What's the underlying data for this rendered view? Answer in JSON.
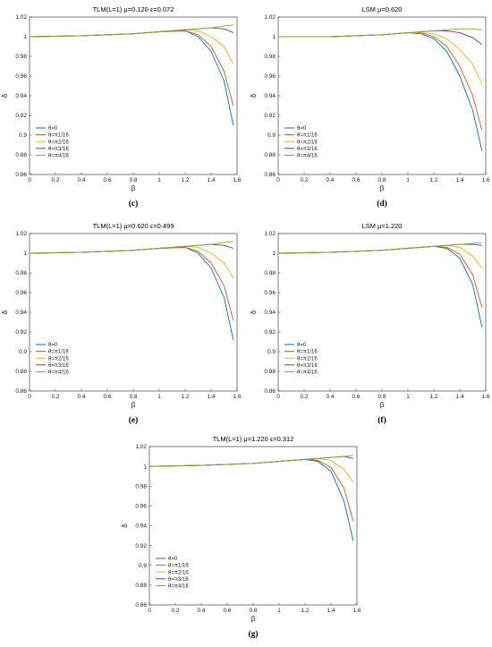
{
  "chart_data": [
    {
      "type": "line",
      "panel": "(c)",
      "title": "TLM(L=1)  μ=0.120 ϵ=0.072",
      "xlabel": "β",
      "ylabel": "δ",
      "xlim": [
        0,
        1.6
      ],
      "ylim": [
        0.86,
        1.02
      ],
      "xticks": [
        "0",
        "0.2",
        "0.4",
        "0.6",
        "0.8",
        "1",
        "1.2",
        "1.4",
        "1.6"
      ],
      "yticks": [
        "0.86",
        "0.88",
        "0.9",
        "0.92",
        "0.94",
        "0.96",
        "0.98",
        "1",
        "1.02"
      ],
      "legend_position": "lower-left",
      "series": [
        {
          "name": "θ=0",
          "color": "#0072BD",
          "x": [
            0,
            0.4,
            0.8,
            1.0,
            1.2,
            1.3,
            1.4,
            1.5,
            1.571
          ],
          "y": [
            1.0,
            1.001,
            1.003,
            1.005,
            1.006,
            1.0,
            0.985,
            0.955,
            0.91
          ]
        },
        {
          "name": "θ=π1/16",
          "color": "#D95319",
          "x": [
            0,
            0.4,
            0.8,
            1.0,
            1.2,
            1.3,
            1.4,
            1.5,
            1.571
          ],
          "y": [
            1.0,
            1.001,
            1.003,
            1.005,
            1.006,
            1.002,
            0.99,
            0.965,
            0.93
          ]
        },
        {
          "name": "θ=π2/16",
          "color": "#EDB120",
          "x": [
            0,
            0.4,
            0.8,
            1.0,
            1.2,
            1.3,
            1.4,
            1.5,
            1.571
          ],
          "y": [
            1.0,
            1.001,
            1.003,
            1.005,
            1.007,
            1.006,
            1.0,
            0.99,
            0.972
          ]
        },
        {
          "name": "θ=π3/16",
          "color": "#7E2F8E",
          "x": [
            0,
            0.4,
            0.8,
            1.0,
            1.2,
            1.3,
            1.4,
            1.5,
            1.571
          ],
          "y": [
            1.0,
            1.001,
            1.003,
            1.005,
            1.007,
            1.008,
            1.009,
            1.008,
            1.004
          ]
        },
        {
          "name": "θ=π4/16",
          "color": "#77AC30",
          "x": [
            0,
            0.4,
            0.8,
            1.0,
            1.2,
            1.3,
            1.4,
            1.5,
            1.571
          ],
          "y": [
            1.0,
            1.001,
            1.003,
            1.005,
            1.007,
            1.008,
            1.009,
            1.011,
            1.012
          ]
        }
      ]
    },
    {
      "type": "line",
      "panel": "(d)",
      "title": "LSM μ=0.620",
      "xlabel": "β",
      "ylabel": "δ",
      "xlim": [
        0,
        1.6
      ],
      "ylim": [
        0.86,
        1.02
      ],
      "xticks": [
        "0",
        "0.2",
        "0.4",
        "0.6",
        "0.8",
        "1",
        "1.2",
        "1.4",
        "1.6"
      ],
      "yticks": [
        "0.86",
        "0.88",
        "0.9",
        "0.92",
        "0.94",
        "0.96",
        "0.98",
        "1",
        "1.02"
      ],
      "legend_position": "lower-left",
      "series": [
        {
          "name": "θ=0",
          "color": "#0072BD",
          "x": [
            0,
            0.4,
            0.8,
            1.0,
            1.1,
            1.2,
            1.3,
            1.4,
            1.5,
            1.571
          ],
          "y": [
            1.0,
            1.0,
            1.002,
            1.004,
            1.003,
            0.998,
            0.985,
            0.96,
            0.925,
            0.884
          ]
        },
        {
          "name": "θ=π1/16",
          "color": "#D95319",
          "x": [
            0,
            0.4,
            0.8,
            1.0,
            1.1,
            1.2,
            1.3,
            1.4,
            1.5,
            1.571
          ],
          "y": [
            1.0,
            1.0,
            1.002,
            1.004,
            1.004,
            1.0,
            0.99,
            0.97,
            0.94,
            0.905
          ]
        },
        {
          "name": "θ=π2/16",
          "color": "#EDB120",
          "x": [
            0,
            0.4,
            0.8,
            1.0,
            1.1,
            1.2,
            1.3,
            1.4,
            1.5,
            1.571
          ],
          "y": [
            1.0,
            1.0,
            1.002,
            1.004,
            1.004,
            1.003,
            0.998,
            0.987,
            0.972,
            0.952
          ]
        },
        {
          "name": "θ=π3/16",
          "color": "#7E2F8E",
          "x": [
            0,
            0.4,
            0.8,
            1.0,
            1.1,
            1.2,
            1.3,
            1.4,
            1.5,
            1.571
          ],
          "y": [
            1.0,
            1.0,
            1.002,
            1.004,
            1.005,
            1.006,
            1.006,
            1.004,
            0.999,
            0.992
          ]
        },
        {
          "name": "θ=π4/16",
          "color": "#77AC30",
          "x": [
            0,
            0.4,
            0.8,
            1.0,
            1.1,
            1.2,
            1.3,
            1.4,
            1.5,
            1.571
          ],
          "y": [
            1.0,
            1.0,
            1.002,
            1.004,
            1.005,
            1.006,
            1.007,
            1.008,
            1.008,
            1.007
          ]
        }
      ]
    },
    {
      "type": "line",
      "panel": "(e)",
      "title": "TLM(L=1)  μ=0.620 ϵ=0.499",
      "xlabel": "β",
      "ylabel": "δ",
      "xlim": [
        0,
        1.6
      ],
      "ylim": [
        0.86,
        1.02
      ],
      "xticks": [
        "0",
        "0.2",
        "0.4",
        "0.6",
        "0.8",
        "1",
        "1.2",
        "1.4",
        "1.6"
      ],
      "yticks": [
        "0.86",
        "0.88",
        "0.9",
        "0.92",
        "0.94",
        "0.96",
        "0.98",
        "1",
        "1.02"
      ],
      "legend_position": "lower-left",
      "series": [
        {
          "name": "θ=0",
          "color": "#0072BD",
          "x": [
            0,
            0.4,
            0.8,
            1.0,
            1.2,
            1.3,
            1.4,
            1.5,
            1.571
          ],
          "y": [
            1.0,
            1.001,
            1.003,
            1.005,
            1.006,
            1.0,
            0.985,
            0.955,
            0.912
          ]
        },
        {
          "name": "θ=π1/16",
          "color": "#D95319",
          "x": [
            0,
            0.4,
            0.8,
            1.0,
            1.2,
            1.3,
            1.4,
            1.5,
            1.571
          ],
          "y": [
            1.0,
            1.001,
            1.003,
            1.005,
            1.006,
            1.002,
            0.99,
            0.967,
            0.932
          ]
        },
        {
          "name": "θ=π2/16",
          "color": "#EDB120",
          "x": [
            0,
            0.4,
            0.8,
            1.0,
            1.2,
            1.3,
            1.4,
            1.5,
            1.571
          ],
          "y": [
            1.0,
            1.001,
            1.003,
            1.005,
            1.007,
            1.006,
            1.0,
            0.99,
            0.975
          ]
        },
        {
          "name": "θ=π3/16",
          "color": "#7E2F8E",
          "x": [
            0,
            0.4,
            0.8,
            1.0,
            1.2,
            1.3,
            1.4,
            1.5,
            1.571
          ],
          "y": [
            1.0,
            1.001,
            1.003,
            1.005,
            1.007,
            1.008,
            1.009,
            1.008,
            1.005
          ]
        },
        {
          "name": "θ=π4/16",
          "color": "#77AC30",
          "x": [
            0,
            0.4,
            0.8,
            1.0,
            1.2,
            1.3,
            1.4,
            1.5,
            1.571
          ],
          "y": [
            1.0,
            1.001,
            1.003,
            1.005,
            1.007,
            1.008,
            1.009,
            1.011,
            1.012
          ]
        }
      ]
    },
    {
      "type": "line",
      "panel": "(f)",
      "title": "LSM μ=1.220",
      "xlabel": "β",
      "ylabel": "δ",
      "xlim": [
        0,
        1.6
      ],
      "ylim": [
        0.86,
        1.02
      ],
      "xticks": [
        "0",
        "0.2",
        "0.4",
        "0.6",
        "0.8",
        "1",
        "1.2",
        "1.4",
        "1.6"
      ],
      "yticks": [
        "0.86",
        "0.88",
        "0.9",
        "0.92",
        "0.94",
        "0.96",
        "0.98",
        "1",
        "1.02"
      ],
      "legend_position": "lower-left",
      "series": [
        {
          "name": "θ=0",
          "color": "#0072BD",
          "x": [
            0,
            0.4,
            0.8,
            1.0,
            1.2,
            1.3,
            1.4,
            1.5,
            1.571
          ],
          "y": [
            1.0,
            1.001,
            1.003,
            1.005,
            1.007,
            1.005,
            0.995,
            0.968,
            0.925
          ]
        },
        {
          "name": "θ=π1/16",
          "color": "#D95319",
          "x": [
            0,
            0.4,
            0.8,
            1.0,
            1.2,
            1.3,
            1.4,
            1.5,
            1.571
          ],
          "y": [
            1.0,
            1.001,
            1.003,
            1.005,
            1.007,
            1.006,
            0.999,
            0.978,
            0.945
          ]
        },
        {
          "name": "θ=π2/16",
          "color": "#EDB120",
          "x": [
            0,
            0.4,
            0.8,
            1.0,
            1.2,
            1.3,
            1.4,
            1.5,
            1.571
          ],
          "y": [
            1.0,
            1.001,
            1.003,
            1.005,
            1.007,
            1.008,
            1.006,
            0.997,
            0.985
          ]
        },
        {
          "name": "θ=π3/16",
          "color": "#7E2F8E",
          "x": [
            0,
            0.4,
            0.8,
            1.0,
            1.2,
            1.3,
            1.4,
            1.5,
            1.571
          ],
          "y": [
            1.0,
            1.001,
            1.003,
            1.005,
            1.007,
            1.008,
            1.009,
            1.009,
            1.008
          ]
        },
        {
          "name": "θ=π4/16",
          "color": "#77AC30",
          "x": [
            0,
            0.4,
            0.8,
            1.0,
            1.2,
            1.3,
            1.4,
            1.5,
            1.571
          ],
          "y": [
            1.0,
            1.001,
            1.003,
            1.005,
            1.007,
            1.008,
            1.009,
            1.01,
            1.011
          ]
        }
      ]
    },
    {
      "type": "line",
      "panel": "(g)",
      "title": "TLM(L=1)  μ=1.220 ϵ=0.312",
      "xlabel": "β",
      "ylabel": "δ",
      "xlim": [
        0,
        1.6
      ],
      "ylim": [
        0.86,
        1.02
      ],
      "xticks": [
        "0",
        "0.2",
        "0.4",
        "0.6",
        "0.8",
        "1",
        "1.2",
        "1.4",
        "1.6"
      ],
      "yticks": [
        "0.86",
        "0.88",
        "0.9",
        "0.92",
        "0.94",
        "0.96",
        "0.98",
        "1",
        "1.02"
      ],
      "legend_position": "lower-left",
      "series": [
        {
          "name": "θ=0",
          "color": "#0072BD",
          "x": [
            0,
            0.4,
            0.8,
            1.0,
            1.2,
            1.3,
            1.4,
            1.5,
            1.571
          ],
          "y": [
            1.0,
            1.001,
            1.003,
            1.005,
            1.007,
            1.005,
            0.995,
            0.965,
            0.925
          ]
        },
        {
          "name": "θ=π1/16",
          "color": "#D95319",
          "x": [
            0,
            0.4,
            0.8,
            1.0,
            1.2,
            1.3,
            1.4,
            1.5,
            1.571
          ],
          "y": [
            1.0,
            1.001,
            1.003,
            1.005,
            1.007,
            1.006,
            0.999,
            0.978,
            0.945
          ]
        },
        {
          "name": "θ=π2/16",
          "color": "#EDB120",
          "x": [
            0,
            0.4,
            0.8,
            1.0,
            1.2,
            1.3,
            1.4,
            1.5,
            1.571
          ],
          "y": [
            1.0,
            1.001,
            1.003,
            1.005,
            1.007,
            1.008,
            1.006,
            0.997,
            0.984
          ]
        },
        {
          "name": "θ=π3/16",
          "color": "#7E2F8E",
          "x": [
            0,
            0.4,
            0.8,
            1.0,
            1.2,
            1.3,
            1.4,
            1.5,
            1.571
          ],
          "y": [
            1.0,
            1.001,
            1.003,
            1.005,
            1.007,
            1.008,
            1.009,
            1.01,
            1.008
          ]
        },
        {
          "name": "θ=π4/16",
          "color": "#77AC30",
          "x": [
            0,
            0.4,
            0.8,
            1.0,
            1.2,
            1.3,
            1.4,
            1.5,
            1.571
          ],
          "y": [
            1.0,
            1.001,
            1.003,
            1.005,
            1.007,
            1.008,
            1.009,
            1.01,
            1.011
          ]
        }
      ]
    }
  ]
}
